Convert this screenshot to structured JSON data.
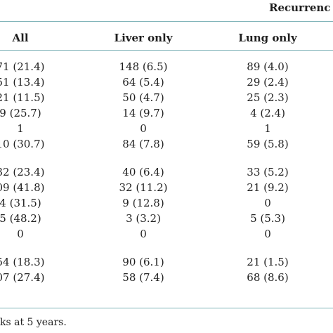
{
  "table": {
    "super_header": "Recurrenc",
    "columns": [
      "All",
      "Liver only",
      "Lung only"
    ],
    "groups": [
      {
        "rows": [
          [
            "71 (21.4)",
            "148 (6.5)",
            "89 (4.0)"
          ],
          [
            "51 (13.4)",
            "64 (5.4)",
            "29 (2.4)"
          ],
          [
            "21 (11.5)",
            "50 (4.7)",
            "25 (2.3)"
          ],
          [
            "9 (25.7)",
            "14 (9.7)",
            "4 (2.4)"
          ],
          [
            "1",
            "0",
            "1"
          ],
          [
            "10 (30.7)",
            "84 (7.8)",
            "59 (5.8)"
          ]
        ]
      },
      {
        "rows": [
          [
            "32 (23.4)",
            "40 (6.4)",
            "33 (5.2)"
          ],
          [
            "09 (41.8)",
            "32 (11.2)",
            "21 (9.2)"
          ],
          [
            "4 (31.5)",
            "9 (12.8)",
            "0"
          ],
          [
            "5 (48.2)",
            "3 (3.2)",
            "5 (5.3)"
          ],
          [
            "0",
            "0",
            "0"
          ]
        ]
      },
      {
        "rows": [
          [
            "54 (18.3)",
            "90 (6.1)",
            "21 (1.5)"
          ],
          [
            "07 (27.4)",
            "58 (7.4)",
            "68 (8.6)"
          ]
        ]
      }
    ],
    "footnote": "ks at 5 years."
  }
}
